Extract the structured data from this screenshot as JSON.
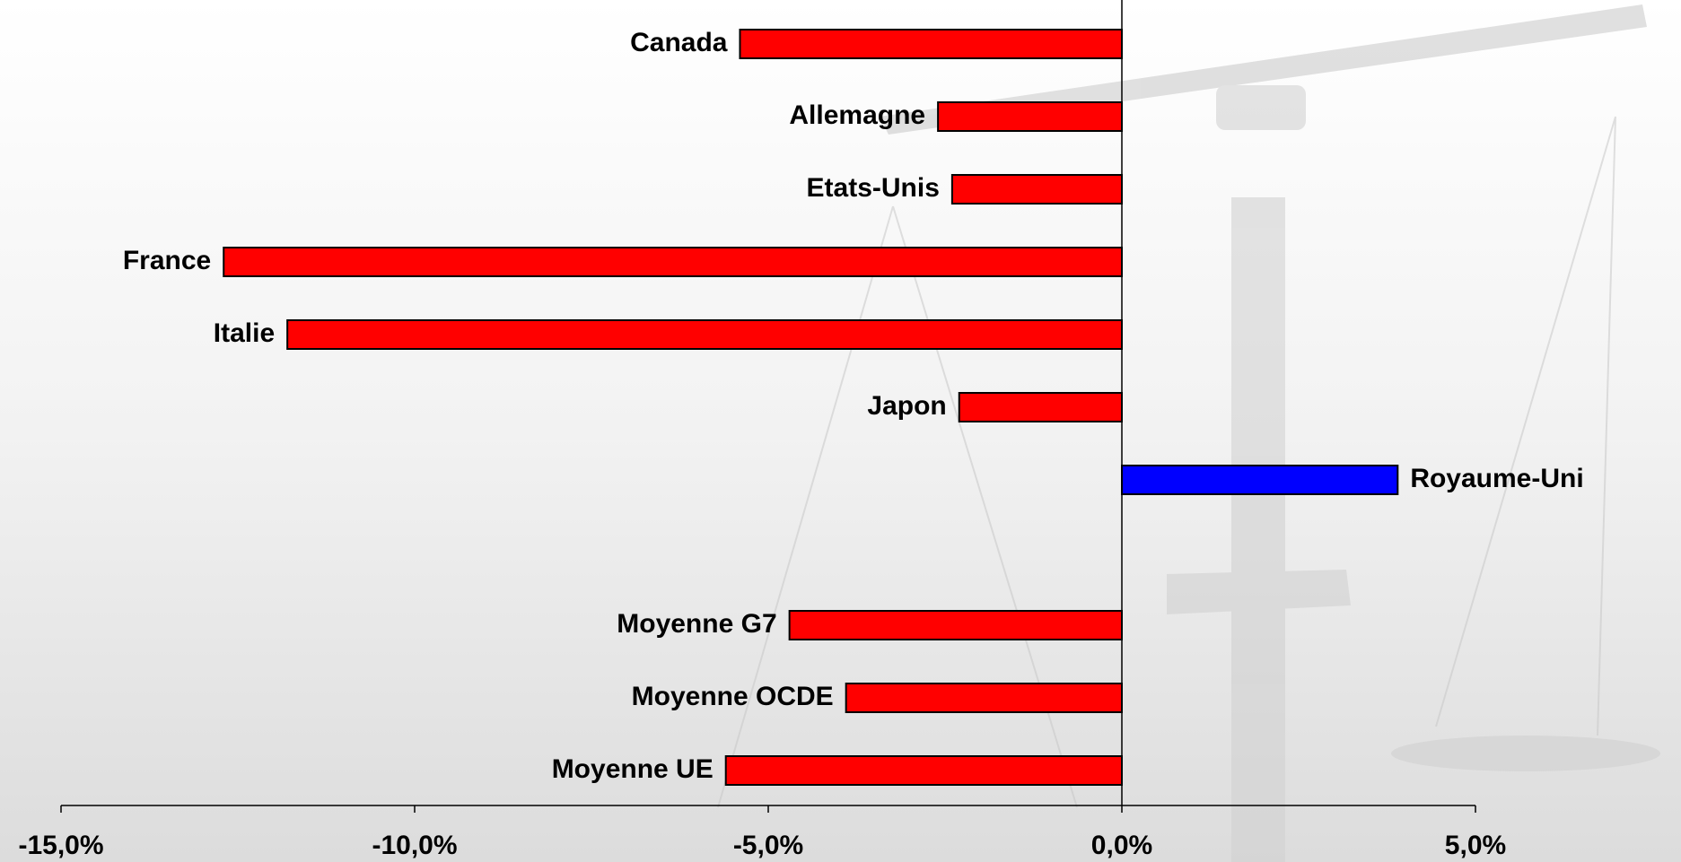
{
  "chart_data": {
    "type": "hbar",
    "categories": [
      "Canada",
      "Allemagne",
      "Etats-Unis",
      "France",
      "Italie",
      "Japon",
      "Royaume-Uni",
      null,
      "Moyenne G7",
      "Moyenne OCDE",
      "Moyenne UE"
    ],
    "values": [
      -5.4,
      -2.6,
      -2.4,
      -12.7,
      -11.8,
      -2.3,
      3.9,
      null,
      -4.7,
      -3.9,
      -5.6
    ],
    "colors": [
      "#ff0000",
      "#ff0000",
      "#ff0000",
      "#ff0000",
      "#ff0000",
      "#ff0000",
      "#0000ff",
      null,
      "#ff0000",
      "#ff0000",
      "#ff0000"
    ],
    "xlim": [
      -15,
      5
    ],
    "xticks": [
      {
        "value": -15,
        "label": "-15,0%"
      },
      {
        "value": -10,
        "label": "-10,0%"
      },
      {
        "value": -5,
        "label": "-5,0%"
      },
      {
        "value": 0,
        "label": "0,0%"
      },
      {
        "value": 5,
        "label": "5,0%"
      }
    ]
  }
}
